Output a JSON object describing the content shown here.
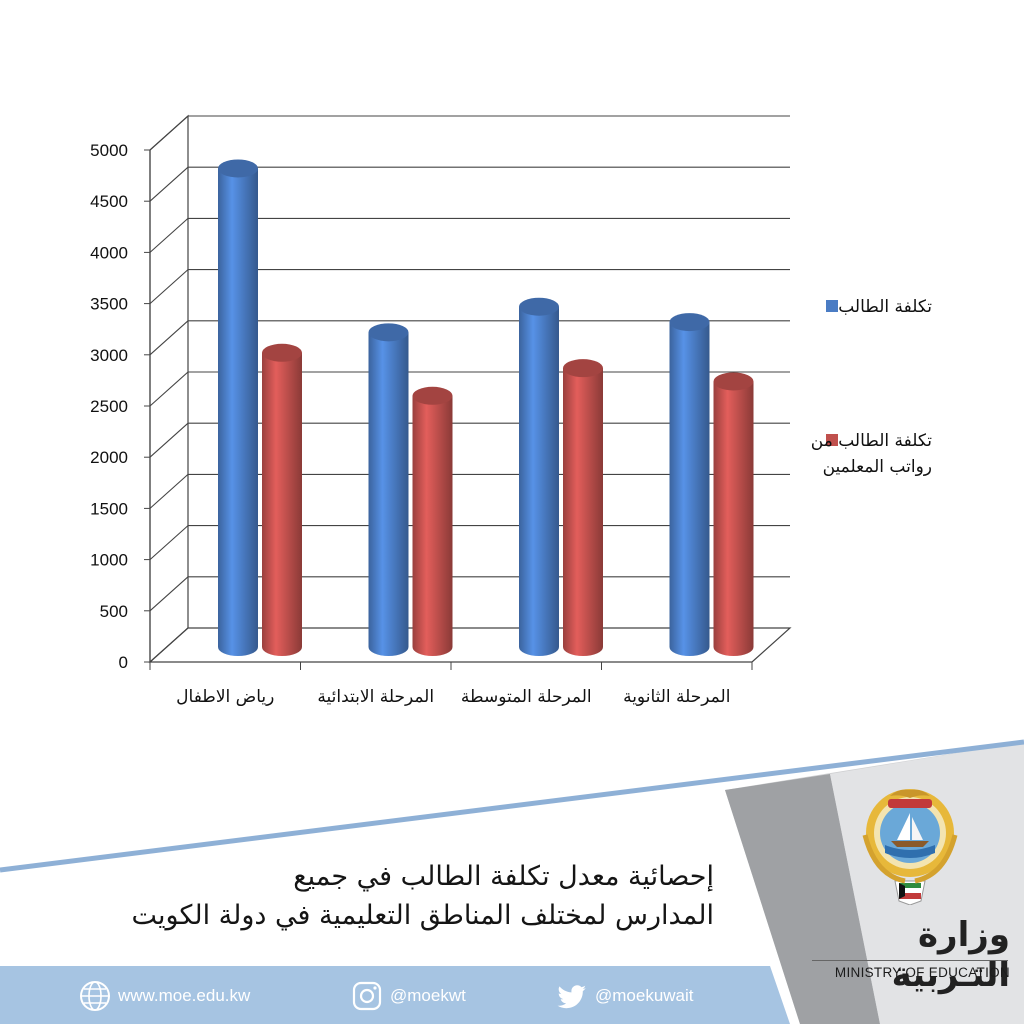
{
  "chart_data": {
    "type": "bar",
    "categories": [
      "رياض الاطفال",
      "المرحلة الابتدائية",
      "المرحلة المتوسطة",
      "المرحلة الثانوية"
    ],
    "series": [
      {
        "name": "تكلفة الطالب",
        "values": [
          4800,
          3200,
          3450,
          3300
        ],
        "color": "#4a7cc4"
      },
      {
        "name": "تكلفة الطالب من رواتب المعلمين",
        "values": [
          3000,
          2580,
          2850,
          2720
        ],
        "color": "#c0504d"
      }
    ],
    "ylim": [
      0,
      5000
    ],
    "yticks": [
      "0",
      "500",
      "1000",
      "1500",
      "2000",
      "2500",
      "3000",
      "3500",
      "4000",
      "4500",
      "5000"
    ],
    "grid": true,
    "legend": "right",
    "title": "",
    "xlabel": "",
    "ylabel": ""
  },
  "legend": {
    "items": [
      {
        "lines": [
          "تكلفة الطالب"
        ],
        "color": "#4a7cc4"
      },
      {
        "lines": [
          "تكلفة الطالب من",
          "رواتب المعلمين"
        ],
        "color": "#c0504d"
      }
    ]
  },
  "caption": {
    "line1": "إحصائية معدل تكلفة الطالب في جميع",
    "line2": "المدارس لمختلف المناطق التعليمية في دولة الكويت"
  },
  "footer": {
    "website": "www.moe.edu.kw",
    "instagram": "@moekwt",
    "twitter": "@moekuwait",
    "bg_color": "#a6c4e2"
  },
  "branding": {
    "ministry_ar": "وزارة التـربية",
    "ministry_en": "MINISTRY OF EDUCATION",
    "accent": "#8eb0d6"
  }
}
